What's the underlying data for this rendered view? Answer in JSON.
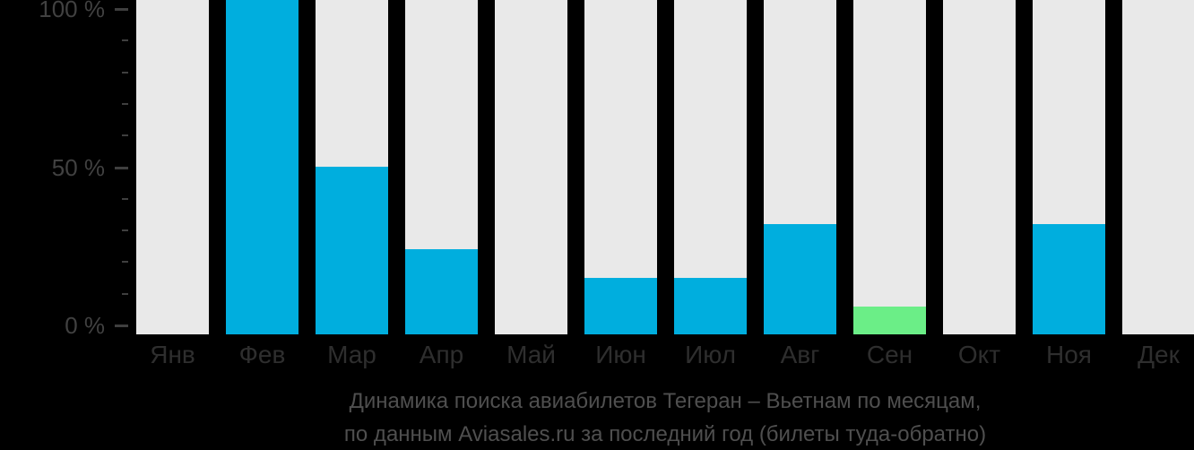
{
  "chart_data": {
    "type": "bar",
    "categories": [
      "Янв",
      "Фев",
      "Мар",
      "Апр",
      "Май",
      "Июн",
      "Июл",
      "Авг",
      "Сен",
      "Окт",
      "Ноя",
      "Дек"
    ],
    "values": [
      0,
      100,
      50,
      24,
      0,
      15,
      15,
      32,
      6,
      0,
      32,
      0
    ],
    "highlighted_category": "Сен",
    "title": "Динамика поиска авиабилетов Тегеран – Вьетнам по месяцам, по данным Aviasales.ru за последний год (билеты туда-обратно)",
    "xlabel": "",
    "ylabel": "",
    "ylim": [
      0,
      100
    ],
    "grid": false,
    "legend_position": "none",
    "y_axis": {
      "tick_labels_major": [
        "100 %",
        "50 %",
        "0 %"
      ],
      "tick_step_percent": 10,
      "major_every_percent": 50
    },
    "colors": {
      "bar": "#00AEDE",
      "highlight_bar": "#6BEE87",
      "track": "#E9E9E9",
      "background": "#000000",
      "axis_text": "#414141",
      "tick": "#3f3f3f",
      "month_text": "#2e2e2e",
      "title_text": "#4f4f4f"
    }
  },
  "title": {
    "line1": "Динамика поиска авиабилетов Тегеран – Вьетнам по месяцам,",
    "line2": "по данным Aviasales.ru за последний год (билеты туда-обратно)"
  }
}
